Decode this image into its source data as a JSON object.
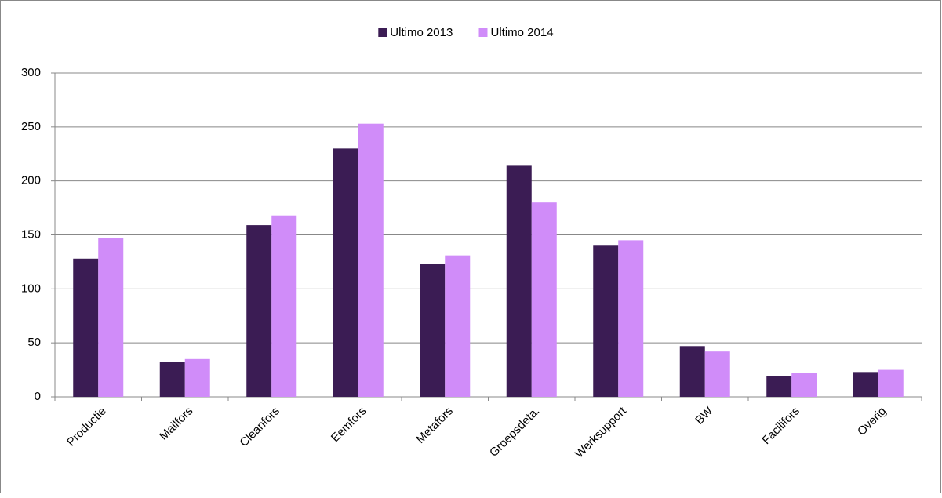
{
  "chart_data": {
    "type": "bar",
    "categories": [
      "Productie",
      "Mailfors",
      "Cleanfors",
      "Eemfors",
      "Metafors",
      "Groepsdeta.",
      "Werksupport",
      "BW",
      "Facilifors",
      "Overig"
    ],
    "series": [
      {
        "name": "Ultimo 2013",
        "color": "#3b1c54",
        "values": [
          128,
          32,
          159,
          230,
          123,
          214,
          140,
          47,
          19,
          23
        ]
      },
      {
        "name": "Ultimo 2014",
        "color": "#d08cf9",
        "values": [
          147,
          35,
          168,
          253,
          131,
          180,
          145,
          42,
          22,
          25
        ]
      }
    ],
    "ylim": [
      0,
      300
    ],
    "yticks": [
      0,
      50,
      100,
      150,
      200,
      250,
      300
    ],
    "grid": true,
    "legend": "top"
  }
}
